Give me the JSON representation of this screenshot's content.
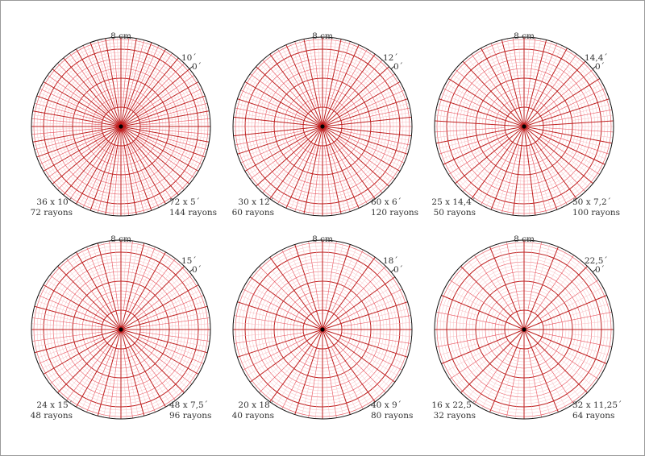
{
  "colors": {
    "grid_major": "#bf1f1f",
    "grid_medium": "#e8555f",
    "grid_minor": "#f7b6ba",
    "outline": "#111111",
    "text": "#333333"
  },
  "diagrams": [
    {
      "size_label": "8 cm",
      "ticks": [
        "10´",
        "0´"
      ],
      "left": [
        "36 x 10´",
        "72 rayons"
      ],
      "right": [
        "72 x 5´",
        "144 rayons"
      ],
      "major_rays": 36,
      "minor_rays": 72
    },
    {
      "size_label": "8 cm",
      "ticks": [
        "12´",
        "0´"
      ],
      "left": [
        "30 x 12´",
        "60 rayons"
      ],
      "right": [
        "60 x 6´",
        "120 rayons"
      ],
      "major_rays": 30,
      "minor_rays": 60
    },
    {
      "size_label": "8 cm",
      "ticks": [
        "14,4´",
        "0´"
      ],
      "left": [
        "25 x 14,4´",
        "50 rayons"
      ],
      "right": [
        "50 x 7,2´",
        "100 rayons"
      ],
      "major_rays": 25,
      "minor_rays": 50
    },
    {
      "size_label": "8 cm",
      "ticks": [
        "15´",
        "0´"
      ],
      "left": [
        "24 x 15´",
        "48 rayons"
      ],
      "right": [
        "48 x 7,5´",
        "96 rayons"
      ],
      "major_rays": 24,
      "minor_rays": 48
    },
    {
      "size_label": "8 cm",
      "ticks": [
        "18´",
        "0´"
      ],
      "left": [
        "20 x 18´",
        "40 rayons"
      ],
      "right": [
        "40 x 9´",
        "80 rayons"
      ],
      "major_rays": 20,
      "minor_rays": 40
    },
    {
      "size_label": "8 cm",
      "ticks": [
        "22,5´",
        "0´"
      ],
      "left": [
        "16 x 22,5´",
        "32 rayons"
      ],
      "right": [
        "32 x 11,25´",
        "64 rayons"
      ],
      "major_rays": 16,
      "minor_rays": 32
    }
  ]
}
